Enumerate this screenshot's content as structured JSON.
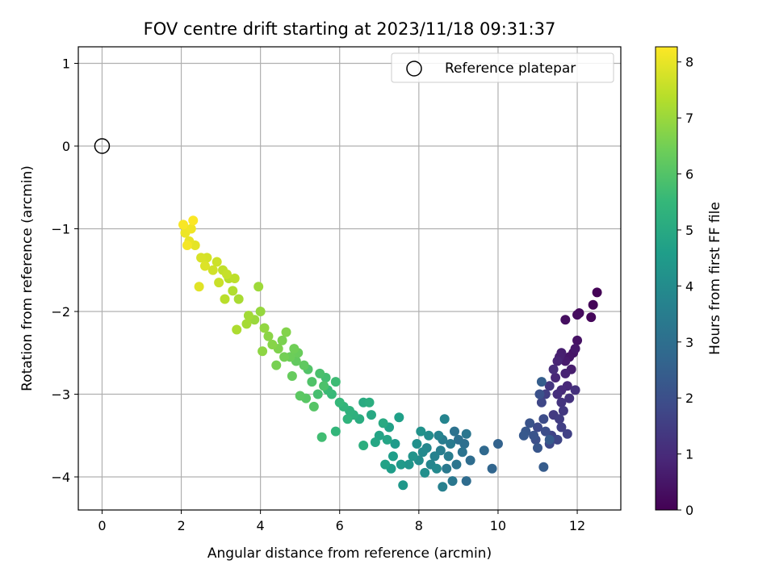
{
  "chart_data": {
    "type": "scatter",
    "title": "FOV centre drift starting at 2023/11/18 09:31:37",
    "xlabel": "Angular distance from reference (arcmin)",
    "ylabel": "Rotation from reference (arcmin)",
    "xlim": [
      -0.6,
      13.1
    ],
    "ylim": [
      -4.4,
      1.2
    ],
    "xticks": [
      0,
      2,
      4,
      6,
      8,
      10,
      12
    ],
    "yticks": [
      1,
      0,
      -1,
      -2,
      -3,
      -4
    ],
    "xtick_labels": [
      "0",
      "2",
      "4",
      "6",
      "8",
      "10",
      "12"
    ],
    "ytick_labels": [
      "1",
      "0",
      "−1",
      "−2",
      "−3",
      "−4"
    ],
    "grid": true,
    "legend": {
      "entries": [
        "Reference platepar"
      ],
      "location": "top-right"
    },
    "colorbar": {
      "label": "Hours from first FF file",
      "range": [
        0,
        8.27
      ],
      "ticks": [
        0,
        1,
        2,
        3,
        4,
        5,
        6,
        7,
        8
      ],
      "tick_labels": [
        "0",
        "1",
        "2",
        "3",
        "4",
        "5",
        "6",
        "7",
        "8"
      ],
      "colormap": "viridis"
    },
    "reference_point": {
      "x": 0,
      "y": 0
    },
    "series": [
      {
        "marker": "circle",
        "points": [
          [
            12.5,
            -1.77,
            0.05
          ],
          [
            12.4,
            -1.92,
            0.1
          ],
          [
            12.35,
            -2.07,
            0.15
          ],
          [
            12.05,
            -2.02,
            0.2
          ],
          [
            12.0,
            -2.04,
            0.25
          ],
          [
            11.7,
            -2.1,
            0.3
          ],
          [
            12.0,
            -2.35,
            0.4
          ],
          [
            11.9,
            -2.5,
            0.45
          ],
          [
            11.8,
            -2.55,
            0.5
          ],
          [
            11.95,
            -2.45,
            0.55
          ],
          [
            11.7,
            -2.6,
            0.6
          ],
          [
            11.85,
            -2.7,
            0.65
          ],
          [
            11.6,
            -2.5,
            0.7
          ],
          [
            11.55,
            -2.55,
            0.75
          ],
          [
            11.7,
            -2.75,
            0.8
          ],
          [
            11.5,
            -2.6,
            0.85
          ],
          [
            11.45,
            -2.8,
            0.9
          ],
          [
            11.75,
            -2.9,
            0.95
          ],
          [
            11.6,
            -2.95,
            1.0
          ],
          [
            11.4,
            -2.7,
            1.05
          ],
          [
            11.5,
            -3.0,
            1.1
          ],
          [
            11.95,
            -2.95,
            1.15
          ],
          [
            11.8,
            -3.05,
            1.2
          ],
          [
            11.6,
            -3.1,
            1.25
          ],
          [
            11.3,
            -2.9,
            1.3
          ],
          [
            11.65,
            -3.2,
            1.35
          ],
          [
            11.4,
            -3.25,
            1.4
          ],
          [
            11.55,
            -3.3,
            1.45
          ],
          [
            11.2,
            -3.0,
            1.5
          ],
          [
            11.6,
            -3.4,
            1.55
          ],
          [
            11.75,
            -3.48,
            1.6
          ],
          [
            11.35,
            -3.5,
            1.65
          ],
          [
            11.5,
            -3.55,
            1.7
          ],
          [
            11.1,
            -3.1,
            1.75
          ],
          [
            11.3,
            -3.6,
            1.8
          ],
          [
            11.0,
            -3.4,
            1.85
          ],
          [
            11.15,
            -3.3,
            1.9
          ],
          [
            11.2,
            -3.45,
            1.95
          ],
          [
            10.95,
            -3.55,
            2.0
          ],
          [
            11.05,
            -3.0,
            2.05
          ],
          [
            10.8,
            -3.35,
            2.1
          ],
          [
            10.9,
            -3.5,
            2.15
          ],
          [
            11.0,
            -3.65,
            2.2
          ],
          [
            10.7,
            -3.45,
            2.25
          ],
          [
            10.65,
            -3.5,
            2.3
          ],
          [
            11.3,
            -3.55,
            2.35
          ],
          [
            11.15,
            -3.88,
            2.4
          ],
          [
            11.1,
            -2.85,
            2.45
          ],
          [
            10.0,
            -3.6,
            2.6
          ],
          [
            9.85,
            -3.9,
            2.7
          ],
          [
            9.65,
            -3.68,
            2.8
          ],
          [
            9.2,
            -4.05,
            2.9
          ],
          [
            9.3,
            -3.8,
            2.95
          ],
          [
            9.15,
            -3.6,
            3.0
          ],
          [
            9.0,
            -3.55,
            3.05
          ],
          [
            8.9,
            -3.45,
            3.1
          ],
          [
            9.1,
            -3.7,
            3.15
          ],
          [
            8.95,
            -3.85,
            3.2
          ],
          [
            9.2,
            -3.48,
            3.25
          ],
          [
            8.85,
            -4.05,
            3.3
          ],
          [
            8.7,
            -3.9,
            3.35
          ],
          [
            8.8,
            -3.6,
            3.4
          ],
          [
            8.6,
            -3.55,
            3.45
          ],
          [
            8.75,
            -3.75,
            3.5
          ],
          [
            8.55,
            -3.68,
            3.55
          ],
          [
            8.6,
            -4.12,
            3.6
          ],
          [
            8.4,
            -3.75,
            3.65
          ],
          [
            8.5,
            -3.5,
            3.7
          ],
          [
            8.65,
            -3.3,
            3.75
          ],
          [
            8.3,
            -3.85,
            3.8
          ],
          [
            8.2,
            -3.65,
            3.85
          ],
          [
            8.45,
            -3.9,
            3.9
          ],
          [
            8.1,
            -3.7,
            3.95
          ],
          [
            8.25,
            -3.5,
            4.0
          ],
          [
            8.0,
            -3.8,
            4.05
          ],
          [
            8.15,
            -3.95,
            4.1
          ],
          [
            7.95,
            -3.6,
            4.15
          ],
          [
            8.05,
            -3.45,
            4.2
          ],
          [
            7.85,
            -3.75,
            4.25
          ],
          [
            7.75,
            -3.85,
            4.3
          ],
          [
            7.6,
            -4.1,
            4.4
          ],
          [
            7.55,
            -3.85,
            4.45
          ],
          [
            7.4,
            -3.6,
            4.5
          ],
          [
            7.3,
            -3.9,
            4.55
          ],
          [
            7.35,
            -3.75,
            4.6
          ],
          [
            7.5,
            -3.28,
            4.65
          ],
          [
            7.25,
            -3.4,
            4.7
          ],
          [
            7.15,
            -3.85,
            4.75
          ],
          [
            7.0,
            -3.5,
            4.8
          ],
          [
            7.2,
            -3.55,
            4.85
          ],
          [
            6.9,
            -3.58,
            4.9
          ],
          [
            6.8,
            -3.25,
            4.95
          ],
          [
            7.1,
            -3.35,
            5.0
          ],
          [
            6.6,
            -3.1,
            5.05
          ],
          [
            6.5,
            -3.3,
            5.1
          ],
          [
            6.75,
            -3.1,
            5.15
          ],
          [
            6.6,
            -3.62,
            5.2
          ],
          [
            6.35,
            -3.25,
            5.25
          ],
          [
            6.25,
            -3.2,
            5.3
          ],
          [
            6.2,
            -3.3,
            5.35
          ],
          [
            6.1,
            -3.15,
            5.4
          ],
          [
            5.9,
            -3.45,
            5.45
          ],
          [
            6.0,
            -3.1,
            5.5
          ],
          [
            5.8,
            -3.0,
            5.55
          ],
          [
            5.7,
            -2.95,
            5.6
          ],
          [
            5.9,
            -2.85,
            5.65
          ],
          [
            5.55,
            -3.52,
            5.7
          ],
          [
            5.65,
            -2.8,
            5.75
          ],
          [
            5.45,
            -3.0,
            5.8
          ],
          [
            5.5,
            -2.75,
            5.85
          ],
          [
            5.6,
            -2.9,
            5.9
          ],
          [
            5.3,
            -2.85,
            5.95
          ],
          [
            5.2,
            -2.7,
            6.0
          ],
          [
            5.35,
            -3.15,
            6.05
          ],
          [
            5.15,
            -3.05,
            6.1
          ],
          [
            5.0,
            -3.02,
            6.15
          ],
          [
            5.1,
            -2.65,
            6.2
          ],
          [
            4.9,
            -2.6,
            6.25
          ],
          [
            4.8,
            -2.78,
            6.3
          ],
          [
            4.95,
            -2.5,
            6.35
          ],
          [
            4.75,
            -2.55,
            6.4
          ],
          [
            4.85,
            -2.45,
            6.45
          ],
          [
            4.6,
            -2.55,
            6.5
          ],
          [
            4.4,
            -2.65,
            6.55
          ],
          [
            4.55,
            -2.35,
            6.6
          ],
          [
            4.45,
            -2.45,
            6.65
          ],
          [
            4.65,
            -2.25,
            6.7
          ],
          [
            4.3,
            -2.4,
            6.75
          ],
          [
            4.2,
            -2.3,
            6.8
          ],
          [
            4.05,
            -2.48,
            6.85
          ],
          [
            4.1,
            -2.2,
            6.9
          ],
          [
            4.0,
            -2.0,
            6.95
          ],
          [
            3.85,
            -2.1,
            7.0
          ],
          [
            3.95,
            -1.7,
            7.05
          ],
          [
            3.7,
            -2.05,
            7.1
          ],
          [
            3.65,
            -2.15,
            7.15
          ],
          [
            3.45,
            -1.85,
            7.2
          ],
          [
            3.4,
            -2.22,
            7.25
          ],
          [
            3.3,
            -1.75,
            7.3
          ],
          [
            3.2,
            -1.6,
            7.35
          ],
          [
            3.1,
            -1.85,
            7.4
          ],
          [
            3.35,
            -1.6,
            7.45
          ],
          [
            3.05,
            -1.5,
            7.5
          ],
          [
            3.15,
            -1.55,
            7.55
          ],
          [
            2.95,
            -1.65,
            7.6
          ],
          [
            2.9,
            -1.4,
            7.65
          ],
          [
            2.8,
            -1.5,
            7.7
          ],
          [
            2.65,
            -1.35,
            7.75
          ],
          [
            2.5,
            -1.35,
            7.8
          ],
          [
            2.6,
            -1.45,
            7.85
          ],
          [
            2.45,
            -1.7,
            7.9
          ],
          [
            2.35,
            -1.2,
            7.95
          ],
          [
            2.2,
            -1.15,
            8.0
          ],
          [
            2.1,
            -1.05,
            8.05
          ],
          [
            2.25,
            -1.0,
            8.1
          ],
          [
            2.15,
            -1.2,
            8.15
          ],
          [
            2.05,
            -0.95,
            8.2
          ],
          [
            2.3,
            -0.9,
            8.25
          ]
        ]
      }
    ]
  }
}
